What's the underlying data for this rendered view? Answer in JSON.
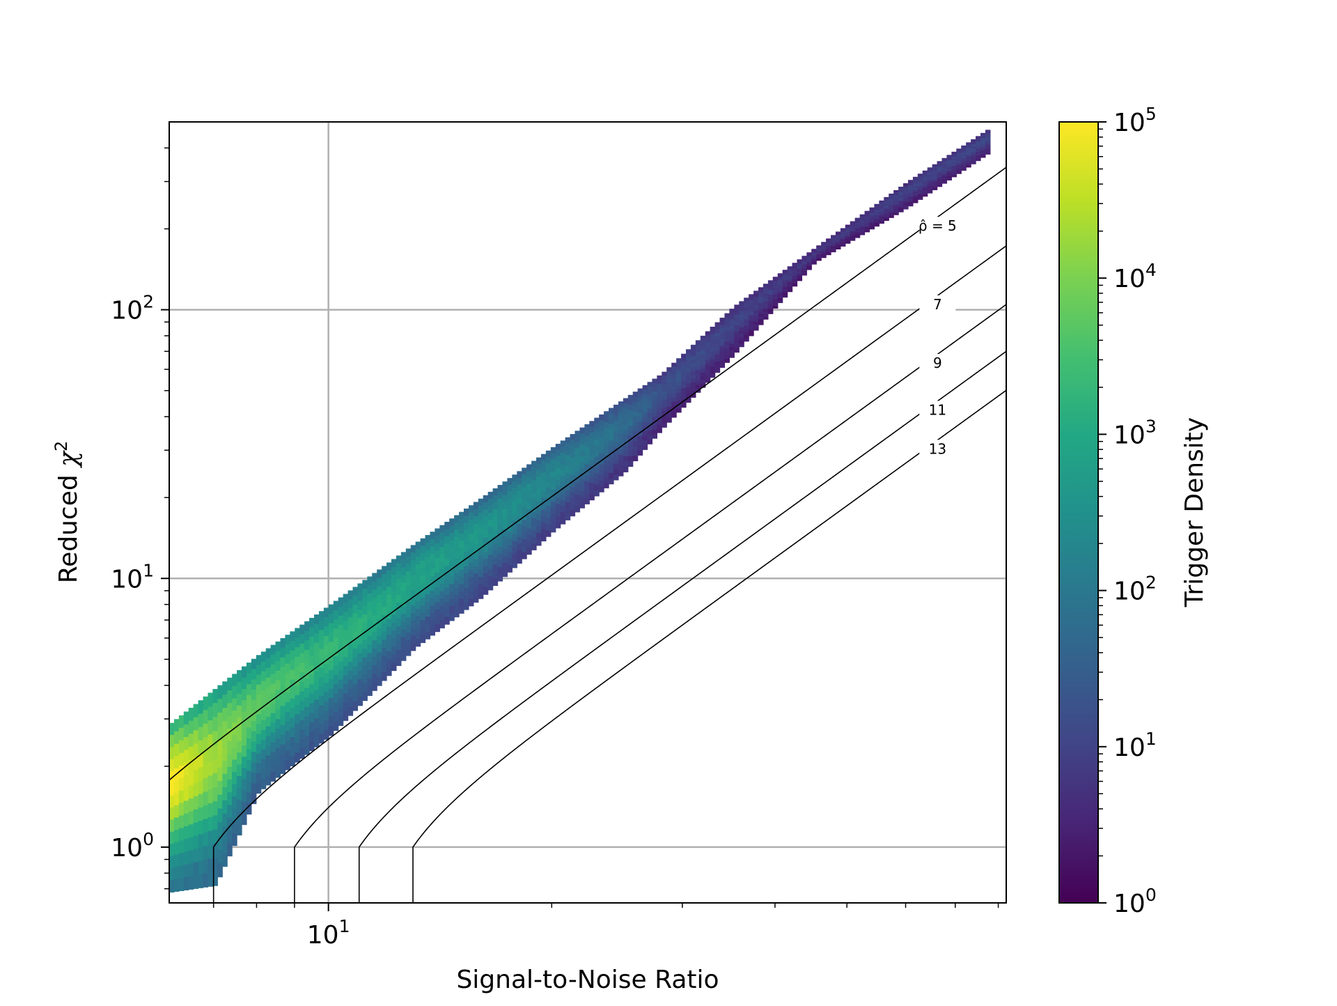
{
  "chart_data": {
    "type": "heatmap",
    "title": "",
    "xlabel": "Signal-to-Noise Ratio",
    "ylabel": "Reduced χ²",
    "xscale": "log",
    "yscale": "log",
    "xlim": [
      6.1,
      82
    ],
    "ylim": [
      0.62,
      500
    ],
    "grid": true,
    "x_major_ticks": [
      {
        "value": 10,
        "base": "10",
        "exp": "1"
      }
    ],
    "y_major_ticks": [
      {
        "value": 1,
        "base": "10",
        "exp": "0"
      },
      {
        "value": 10,
        "base": "10",
        "exp": "1"
      },
      {
        "value": 100,
        "base": "10",
        "exp": "2"
      }
    ],
    "colorbar": {
      "label": "Trigger Density",
      "scale": "log",
      "range": [
        1,
        100000
      ],
      "colormap": "viridis",
      "ticks": [
        {
          "value": 1,
          "base": "10",
          "exp": "0"
        },
        {
          "value": 10,
          "base": "10",
          "exp": "1"
        },
        {
          "value": 100,
          "base": "10",
          "exp": "2"
        },
        {
          "value": 1000,
          "base": "10",
          "exp": "3"
        },
        {
          "value": 10000,
          "base": "10",
          "exp": "4"
        },
        {
          "value": 100000,
          "base": "10",
          "exp": "5"
        }
      ]
    },
    "density_band": {
      "description_points": [
        {
          "snr": 6.1,
          "chisq_upper": 2.9,
          "chisq_lower": 0.68,
          "peak_density": 100000
        },
        {
          "snr": 7,
          "chisq_upper": 3.9,
          "chisq_lower": 0.72,
          "peak_density": 20000
        },
        {
          "snr": 8,
          "chisq_upper": 5.2,
          "chisq_lower": 1.6,
          "peak_density": 5000
        },
        {
          "snr": 10,
          "chisq_upper": 8,
          "chisq_lower": 2.6,
          "peak_density": 2000
        },
        {
          "snr": 13,
          "chisq_upper": 13.5,
          "chisq_lower": 5.5,
          "peak_density": 800
        },
        {
          "snr": 16,
          "chisq_upper": 20,
          "chisq_lower": 8.5,
          "peak_density": 400
        },
        {
          "snr": 20,
          "chisq_upper": 31,
          "chisq_lower": 15,
          "peak_density": 200
        },
        {
          "snr": 25,
          "chisq_upper": 47,
          "chisq_lower": 25,
          "peak_density": 60
        },
        {
          "snr": 28,
          "chisq_upper": 58,
          "chisq_lower": 36,
          "peak_density": 20
        },
        {
          "snr": 35,
          "chisq_upper": 103,
          "chisq_lower": 68,
          "peak_density": 10
        },
        {
          "snr": 45,
          "chisq_upper": 170,
          "chisq_lower": 150,
          "peak_density": 6
        },
        {
          "snr": 60,
          "chisq_upper": 300,
          "chisq_lower": 240,
          "peak_density": 10
        },
        {
          "snr": 78,
          "chisq_upper": 480,
          "chisq_lower": 390,
          "peak_density": 12
        }
      ]
    },
    "contours": [
      {
        "label": "ρ̂ = 5",
        "rho_hat": 5
      },
      {
        "label": "7",
        "rho_hat": 7
      },
      {
        "label": "9",
        "rho_hat": 9
      },
      {
        "label": "11",
        "rho_hat": 11
      },
      {
        "label": "13",
        "rho_hat": 13
      }
    ]
  }
}
